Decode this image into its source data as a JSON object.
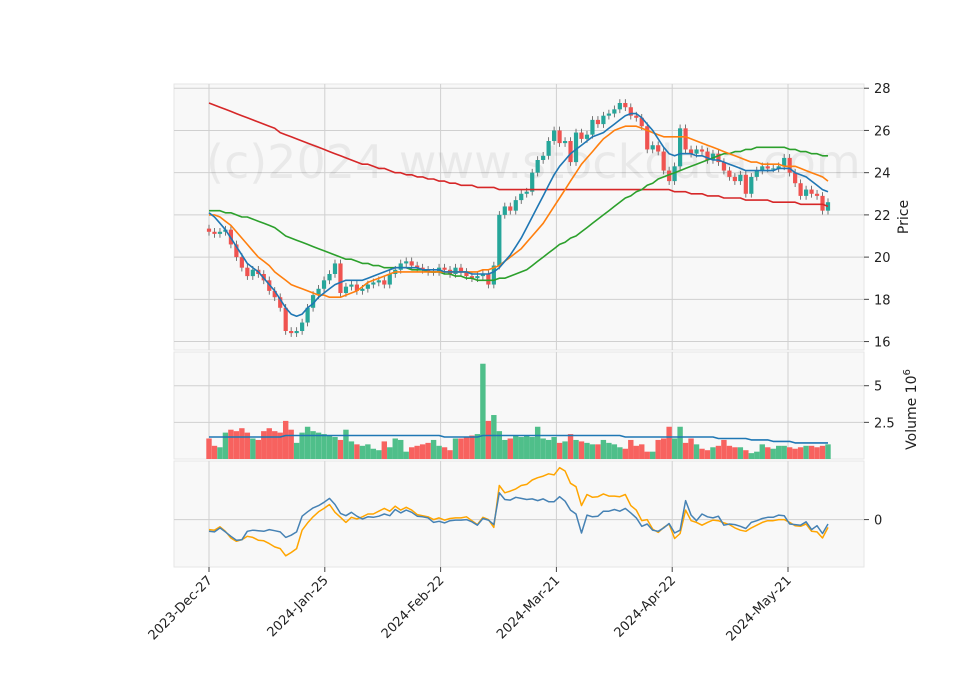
{
  "chart_data": {
    "type": "candlestick",
    "watermark": "(c)2024 www.stockdata.com",
    "x_tick_labels": [
      "2023-Dec-27",
      "2024-Jan-25",
      "2024-Feb-22",
      "2024-Mar-21",
      "2024-Apr-22",
      "2024-May-21"
    ],
    "price_panel": {
      "ylabel": "Price",
      "ylim": [
        15.6,
        28.2
      ],
      "yticks": [
        16,
        18,
        20,
        22,
        24,
        26,
        28
      ],
      "close": [
        21.2,
        21.1,
        21.2,
        21.3,
        20.6,
        20.0,
        19.5,
        19.1,
        19.4,
        19.2,
        18.9,
        18.4,
        18.1,
        17.6,
        16.5,
        16.4,
        16.5,
        16.9,
        17.6,
        18.2,
        18.5,
        18.9,
        19.2,
        19.7,
        18.3,
        18.6,
        18.7,
        18.4,
        18.5,
        18.7,
        18.8,
        18.9,
        18.7,
        19.2,
        19.4,
        19.7,
        19.8,
        19.6,
        19.5,
        19.4,
        19.3,
        19.3,
        19.5,
        19.4,
        19.2,
        19.5,
        19.3,
        19.1,
        19.0,
        19.1,
        19.2,
        18.7,
        19.6,
        22.0,
        22.4,
        22.2,
        22.7,
        23.0,
        23.1,
        24.0,
        24.6,
        24.8,
        25.5,
        26.0,
        25.4,
        25.5,
        24.5,
        25.9,
        25.6,
        25.8,
        26.5,
        26.3,
        26.7,
        26.8,
        27.0,
        27.3,
        27.1,
        26.7,
        26.6,
        26.2,
        25.1,
        25.3,
        25.0,
        24.1,
        23.6,
        24.3,
        26.1,
        25.1,
        24.9,
        25.1,
        25.0,
        24.6,
        24.9,
        24.5,
        24.1,
        23.8,
        23.6,
        23.9,
        23.0,
        23.8,
        24.1,
        24.3,
        24.2,
        24.2,
        24.3,
        24.7,
        24.0,
        23.5,
        22.9,
        23.2,
        23.0,
        22.9,
        22.2,
        22.6
      ],
      "ma_short": {
        "name": "",
        "color": "#1f77b4",
        "values": [
          22.1,
          21.9,
          21.6,
          21.3,
          20.9,
          20.5,
          20.1,
          19.7,
          19.5,
          19.3,
          19.0,
          18.7,
          18.4,
          18.0,
          17.6,
          17.3,
          17.2,
          17.3,
          17.6,
          17.8,
          18.1,
          18.3,
          18.5,
          18.7,
          18.8,
          18.9,
          18.9,
          18.9,
          18.9,
          19.0,
          19.1,
          19.2,
          19.3,
          19.4,
          19.5,
          19.5,
          19.5,
          19.5,
          19.5,
          19.4,
          19.4,
          19.4,
          19.4,
          19.3,
          19.3,
          19.3,
          19.3,
          19.3,
          19.2,
          19.2,
          19.2,
          19.2,
          19.3,
          19.5,
          19.8,
          20.1,
          20.5,
          20.9,
          21.4,
          21.9,
          22.4,
          22.9,
          23.4,
          23.9,
          24.3,
          24.6,
          24.9,
          25.1,
          25.3,
          25.5,
          25.7,
          25.8,
          25.9,
          26.1,
          26.3,
          26.5,
          26.7,
          26.8,
          26.8,
          26.6,
          26.3,
          26.0,
          25.6,
          25.2,
          24.9,
          24.8,
          24.9,
          24.9,
          24.9,
          24.8,
          24.8,
          24.7,
          24.6,
          24.6,
          24.5,
          24.4,
          24.3,
          24.2,
          24.1,
          24.1,
          24.1,
          24.1,
          24.1,
          24.1,
          24.2,
          24.2,
          24.2,
          24.0,
          23.9,
          23.8,
          23.6,
          23.4,
          23.2,
          23.1
        ]
      },
      "ma_mid": {
        "name": "",
        "color": "#ff7f0e",
        "values": [
          22.0,
          22.0,
          21.9,
          21.7,
          21.5,
          21.2,
          20.9,
          20.6,
          20.3,
          20.0,
          19.8,
          19.6,
          19.3,
          19.1,
          18.9,
          18.7,
          18.6,
          18.5,
          18.4,
          18.3,
          18.2,
          18.2,
          18.1,
          18.1,
          18.1,
          18.2,
          18.3,
          18.4,
          18.6,
          18.8,
          18.9,
          19.0,
          19.1,
          19.2,
          19.3,
          19.3,
          19.3,
          19.3,
          19.3,
          19.3,
          19.3,
          19.3,
          19.3,
          19.3,
          19.3,
          19.3,
          19.3,
          19.3,
          19.3,
          19.3,
          19.4,
          19.4,
          19.5,
          19.6,
          19.8,
          20.0,
          20.2,
          20.4,
          20.7,
          21.0,
          21.3,
          21.6,
          22.0,
          22.4,
          22.8,
          23.2,
          23.6,
          24.0,
          24.4,
          24.7,
          25.0,
          25.3,
          25.6,
          25.8,
          26.0,
          26.1,
          26.2,
          26.2,
          26.2,
          26.1,
          26.0,
          25.9,
          25.8,
          25.7,
          25.7,
          25.7,
          25.7,
          25.7,
          25.6,
          25.5,
          25.4,
          25.3,
          25.2,
          25.1,
          25.0,
          24.9,
          24.8,
          24.7,
          24.6,
          24.5,
          24.5,
          24.4,
          24.4,
          24.4,
          24.4,
          24.3,
          24.3,
          24.3,
          24.2,
          24.1,
          24.0,
          23.9,
          23.8,
          23.6
        ]
      },
      "ma_long": {
        "name": "",
        "color": "#2ca02c",
        "values": [
          22.2,
          22.2,
          22.2,
          22.1,
          22.1,
          22.0,
          21.9,
          21.9,
          21.8,
          21.7,
          21.6,
          21.5,
          21.4,
          21.2,
          21.0,
          20.9,
          20.8,
          20.7,
          20.6,
          20.5,
          20.4,
          20.3,
          20.2,
          20.1,
          20.0,
          19.9,
          19.9,
          19.8,
          19.7,
          19.7,
          19.6,
          19.6,
          19.5,
          19.5,
          19.5,
          19.5,
          19.5,
          19.4,
          19.4,
          19.4,
          19.3,
          19.3,
          19.3,
          19.2,
          19.2,
          19.1,
          19.1,
          19.0,
          19.0,
          18.9,
          18.9,
          18.9,
          18.9,
          19.0,
          19.0,
          19.1,
          19.2,
          19.3,
          19.4,
          19.6,
          19.8,
          20.0,
          20.2,
          20.4,
          20.6,
          20.7,
          20.9,
          21.0,
          21.2,
          21.4,
          21.6,
          21.8,
          22.0,
          22.2,
          22.4,
          22.6,
          22.8,
          22.9,
          23.1,
          23.2,
          23.4,
          23.5,
          23.7,
          23.8,
          23.9,
          24.0,
          24.1,
          24.2,
          24.3,
          24.4,
          24.5,
          24.6,
          24.7,
          24.8,
          24.9,
          24.9,
          25.0,
          25.0,
          25.1,
          25.1,
          25.2,
          25.2,
          25.2,
          25.2,
          25.2,
          25.2,
          25.1,
          25.1,
          25.0,
          25.0,
          24.9,
          24.9,
          24.8,
          24.8
        ]
      },
      "ma_very_long": {
        "name": "",
        "color": "#d62728",
        "values": [
          27.3,
          27.2,
          27.1,
          27.0,
          26.9,
          26.8,
          26.7,
          26.6,
          26.5,
          26.4,
          26.3,
          26.2,
          26.1,
          25.9,
          25.8,
          25.7,
          25.6,
          25.5,
          25.4,
          25.3,
          25.2,
          25.1,
          25.0,
          24.9,
          24.8,
          24.7,
          24.6,
          24.5,
          24.4,
          24.4,
          24.3,
          24.2,
          24.2,
          24.1,
          24.0,
          24.0,
          23.9,
          23.9,
          23.8,
          23.8,
          23.7,
          23.7,
          23.6,
          23.6,
          23.5,
          23.5,
          23.4,
          23.4,
          23.4,
          23.3,
          23.3,
          23.3,
          23.3,
          23.2,
          23.2,
          23.2,
          23.2,
          23.2,
          23.2,
          23.2,
          23.2,
          23.2,
          23.2,
          23.2,
          23.2,
          23.2,
          23.2,
          23.2,
          23.2,
          23.2,
          23.2,
          23.2,
          23.2,
          23.2,
          23.2,
          23.2,
          23.2,
          23.2,
          23.2,
          23.2,
          23.2,
          23.2,
          23.2,
          23.2,
          23.2,
          23.1,
          23.1,
          23.1,
          23.0,
          23.0,
          23.0,
          22.9,
          22.9,
          22.9,
          22.8,
          22.8,
          22.8,
          22.8,
          22.7,
          22.7,
          22.7,
          22.7,
          22.7,
          22.6,
          22.6,
          22.6,
          22.6,
          22.6,
          22.5,
          22.5,
          22.5,
          22.5,
          22.5,
          22.4
        ]
      }
    },
    "volume_panel": {
      "ylabel": "Volume  10",
      "ylabel_exp": "6",
      "ylim": [
        0,
        7.3
      ],
      "yticks": [
        2.5,
        5.0
      ],
      "volume": [
        1.4,
        0.9,
        0.8,
        1.8,
        2.0,
        1.9,
        2.1,
        1.8,
        1.4,
        1.3,
        1.9,
        2.1,
        1.9,
        1.8,
        2.6,
        2.0,
        1.1,
        1.8,
        2.2,
        1.9,
        1.8,
        1.7,
        1.6,
        1.5,
        1.3,
        2.0,
        1.2,
        1.0,
        0.9,
        1.0,
        0.7,
        0.6,
        1.2,
        0.8,
        1.4,
        1.3,
        0.5,
        0.8,
        0.9,
        1.0,
        1.1,
        1.3,
        0.9,
        0.8,
        0.6,
        1.4,
        1.4,
        1.5,
        1.6,
        1.7,
        6.5,
        2.6,
        3.0,
        1.9,
        1.3,
        1.4,
        1.6,
        1.5,
        1.6,
        1.5,
        2.2,
        1.4,
        1.3,
        1.5,
        1.1,
        1.2,
        1.7,
        1.3,
        1.2,
        1.1,
        1.0,
        1.0,
        1.3,
        1.1,
        1.0,
        0.8,
        0.7,
        1.3,
        0.9,
        1.0,
        0.5,
        0.5,
        1.3,
        1.4,
        2.2,
        1.4,
        2.2,
        1.1,
        1.4,
        1.0,
        0.7,
        0.6,
        0.8,
        0.9,
        1.3,
        0.9,
        0.8,
        0.8,
        0.6,
        0.4,
        0.5,
        1.0,
        0.8,
        0.7,
        0.9,
        0.9,
        0.8,
        0.7,
        0.8,
        0.9,
        0.9,
        0.8,
        0.9,
        1.0
      ],
      "volume_ma": [
        1.5,
        1.5,
        1.5,
        1.5,
        1.5,
        1.5,
        1.5,
        1.5,
        1.5,
        1.5,
        1.5,
        1.5,
        1.5,
        1.5,
        1.6,
        1.6,
        1.6,
        1.6,
        1.6,
        1.6,
        1.6,
        1.6,
        1.6,
        1.6,
        1.6,
        1.6,
        1.6,
        1.6,
        1.6,
        1.6,
        1.6,
        1.6,
        1.6,
        1.6,
        1.6,
        1.6,
        1.6,
        1.6,
        1.6,
        1.6,
        1.6,
        1.6,
        1.6,
        1.5,
        1.5,
        1.5,
        1.5,
        1.5,
        1.5,
        1.5,
        1.6,
        1.6,
        1.6,
        1.6,
        1.6,
        1.6,
        1.6,
        1.6,
        1.6,
        1.6,
        1.6,
        1.6,
        1.6,
        1.6,
        1.6,
        1.6,
        1.6,
        1.6,
        1.6,
        1.6,
        1.6,
        1.6,
        1.6,
        1.6,
        1.6,
        1.6,
        1.5,
        1.5,
        1.5,
        1.5,
        1.5,
        1.5,
        1.5,
        1.5,
        1.5,
        1.5,
        1.5,
        1.5,
        1.5,
        1.5,
        1.5,
        1.5,
        1.5,
        1.4,
        1.4,
        1.4,
        1.4,
        1.4,
        1.4,
        1.3,
        1.3,
        1.3,
        1.3,
        1.2,
        1.2,
        1.2,
        1.2,
        1.1,
        1.1,
        1.1,
        1.1,
        1.1,
        1.1,
        1.1
      ]
    },
    "oscillator_panel": {
      "ylim": [
        -0.85,
        1.05
      ],
      "yticks": [
        0
      ],
      "line1": {
        "name": "",
        "color": "#4682b4",
        "values": [
          -0.21,
          -0.22,
          -0.15,
          -0.22,
          -0.3,
          -0.37,
          -0.36,
          -0.21,
          -0.19,
          -0.2,
          -0.21,
          -0.18,
          -0.2,
          -0.22,
          -0.32,
          -0.28,
          -0.22,
          0.06,
          0.14,
          0.21,
          0.25,
          0.31,
          0.38,
          0.27,
          0.11,
          0.07,
          0.13,
          0.06,
          0.01,
          0.05,
          0.04,
          0.06,
          0.1,
          0.07,
          0.18,
          0.12,
          0.17,
          0.13,
          0.06,
          0.05,
          0.03,
          -0.05,
          -0.03,
          -0.06,
          -0.02,
          -0.01,
          -0.01,
          0.0,
          -0.04,
          -0.1,
          0.02,
          -0.01,
          -0.09,
          0.48,
          0.36,
          0.35,
          0.4,
          0.38,
          0.36,
          0.37,
          0.34,
          0.37,
          0.32,
          0.32,
          0.41,
          0.33,
          0.17,
          0.1,
          -0.24,
          0.08,
          0.05,
          0.06,
          0.15,
          0.15,
          0.18,
          0.15,
          0.2,
          0.12,
          0.03,
          -0.12,
          -0.08,
          -0.19,
          -0.21,
          -0.15,
          -0.07,
          -0.24,
          -0.19,
          0.34,
          0.08,
          -0.02,
          0.1,
          0.05,
          0.03,
          0.06,
          -0.1,
          -0.08,
          -0.09,
          -0.12,
          -0.16,
          -0.05,
          -0.02,
          0.02,
          0.04,
          0.04,
          0.08,
          0.07,
          -0.08,
          -0.09,
          -0.1,
          -0.04,
          -0.18,
          -0.11,
          -0.25,
          -0.08
        ]
      },
      "line2": {
        "name": "",
        "color": "#ffa500",
        "values": [
          -0.18,
          -0.19,
          -0.13,
          -0.21,
          -0.33,
          -0.39,
          -0.36,
          -0.3,
          -0.32,
          -0.37,
          -0.38,
          -0.43,
          -0.49,
          -0.52,
          -0.65,
          -0.59,
          -0.52,
          -0.19,
          -0.06,
          0.05,
          0.14,
          0.2,
          0.27,
          0.13,
          0.04,
          -0.05,
          0.04,
          0.01,
          0.05,
          0.1,
          0.1,
          0.15,
          0.2,
          0.15,
          0.24,
          0.17,
          0.22,
          0.17,
          0.09,
          0.07,
          0.05,
          0.0,
          0.03,
          -0.01,
          0.02,
          0.03,
          0.03,
          0.05,
          -0.02,
          -0.09,
          0.04,
          0.0,
          -0.14,
          0.61,
          0.48,
          0.51,
          0.55,
          0.61,
          0.63,
          0.71,
          0.75,
          0.78,
          0.82,
          0.8,
          0.93,
          0.87,
          0.65,
          0.59,
          0.25,
          0.45,
          0.4,
          0.41,
          0.46,
          0.42,
          0.42,
          0.41,
          0.45,
          0.25,
          0.17,
          -0.02,
          0.0,
          -0.17,
          -0.23,
          -0.14,
          -0.08,
          -0.34,
          -0.25,
          0.17,
          -0.02,
          -0.05,
          -0.1,
          -0.05,
          -0.01,
          -0.02,
          -0.06,
          -0.09,
          -0.15,
          -0.19,
          -0.21,
          -0.15,
          -0.1,
          -0.05,
          -0.02,
          -0.02,
          0.0,
          0.0,
          -0.05,
          -0.11,
          -0.12,
          -0.08,
          -0.21,
          -0.22,
          -0.33,
          -0.14
        ]
      }
    }
  }
}
